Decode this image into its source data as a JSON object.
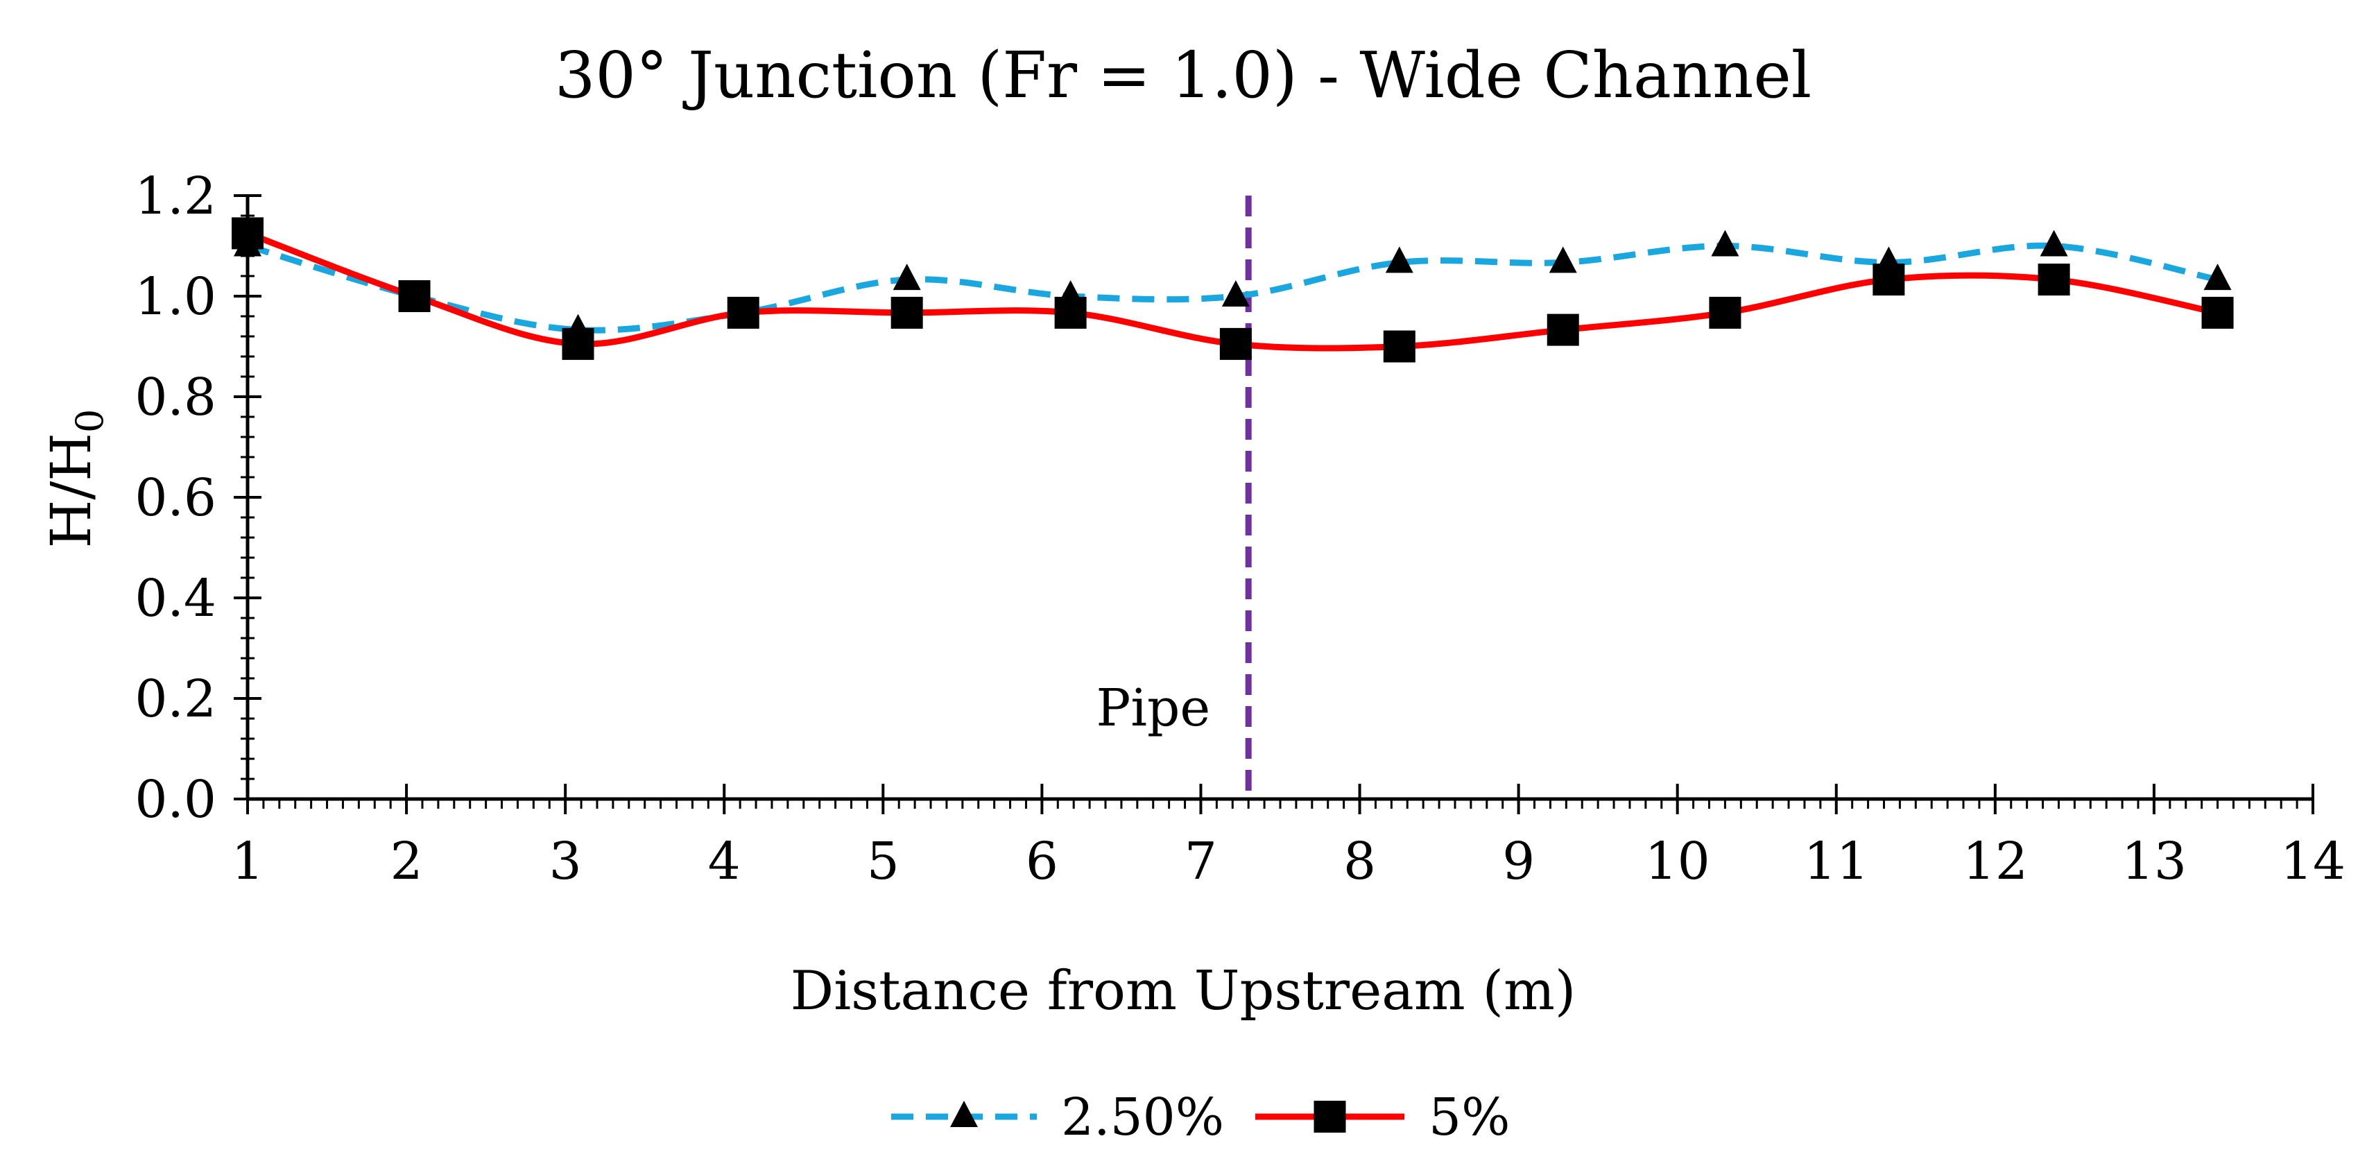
{
  "chart_data": {
    "type": "line",
    "title": "30° Junction (Fr = 1.0) - Wide Channel",
    "xlabel": "Distance from Upstream (m)",
    "ylabel": "H/H",
    "ylabel_subscript": "0",
    "xlim": [
      1,
      14
    ],
    "ylim": [
      0.0,
      1.2
    ],
    "x_ticks": [
      "1",
      "2",
      "3",
      "4",
      "5",
      "6",
      "7",
      "8",
      "9",
      "10",
      "11",
      "12",
      "13",
      "14"
    ],
    "y_ticks": [
      "0.0",
      "0.2",
      "0.4",
      "0.6",
      "0.8",
      "1.0",
      "1.2"
    ],
    "series": [
      {
        "name": "2.50%",
        "color": "#1aa7e0",
        "line_style": "dashed",
        "marker": "triangle",
        "x": [
          1.0,
          2.05,
          3.08,
          4.12,
          5.15,
          6.18,
          7.22,
          8.25,
          9.28,
          10.3,
          11.33,
          12.37,
          13.4
        ],
        "y": [
          1.1,
          1.0,
          0.933,
          0.967,
          1.033,
          1.0,
          1.0,
          1.067,
          1.067,
          1.1,
          1.067,
          1.1,
          1.033
        ]
      },
      {
        "name": "5%",
        "color": "#ff0000",
        "line_style": "solid",
        "marker": "square",
        "x": [
          1.0,
          2.05,
          3.08,
          4.12,
          5.15,
          6.18,
          7.22,
          8.25,
          9.28,
          10.3,
          11.33,
          12.37,
          13.4
        ],
        "y": [
          1.125,
          1.0,
          0.905,
          0.967,
          0.967,
          0.967,
          0.905,
          0.9,
          0.933,
          0.967,
          1.033,
          1.033,
          0.967
        ]
      }
    ],
    "annotations": [
      {
        "type": "vertical_line",
        "x": 7.3,
        "color": "#7030a0",
        "line_style": "dashed",
        "label": "Pipe"
      }
    ],
    "legend": {
      "position": "bottom-center"
    },
    "grid": false
  }
}
